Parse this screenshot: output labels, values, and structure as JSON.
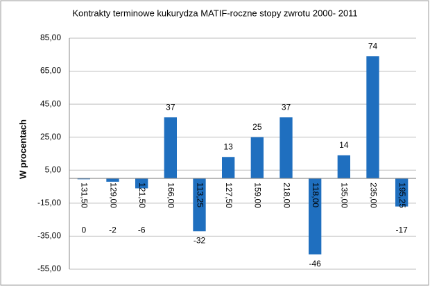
{
  "chart_data": {
    "type": "bar",
    "title": "Kontrakty terminowe kukurydza MATIF-roczne stopy zwrotu 2000- 2011",
    "y_label": "W procentach",
    "categories": [
      "131,50",
      "129,00",
      "121,50",
      "166,00",
      "113,25",
      "127,50",
      "159,00",
      "218,00",
      "118,00",
      "135,00",
      "235,00",
      "195,25"
    ],
    "values": [
      -0.5,
      -2,
      -6,
      37,
      -32,
      13,
      25,
      37,
      -46,
      14,
      74,
      -17
    ],
    "value_labels": [
      "0",
      "-2",
      "-6",
      "37",
      "-32",
      "13",
      "25",
      "37",
      "-46",
      "14",
      "74",
      "-17"
    ],
    "color": "#1f6fbf",
    "ylim": [
      -55,
      85
    ],
    "yticks": [
      {
        "value": -55,
        "label": "-55,00"
      },
      {
        "value": -35,
        "label": "-35,00"
      },
      {
        "value": -15,
        "label": "-15,00"
      },
      {
        "value": 5,
        "label": "5,00"
      },
      {
        "value": 25,
        "label": "25,00"
      },
      {
        "value": 45,
        "label": "45,00"
      },
      {
        "value": 65,
        "label": "65,00"
      },
      {
        "value": 85,
        "label": "85,00"
      }
    ],
    "grid": true
  }
}
